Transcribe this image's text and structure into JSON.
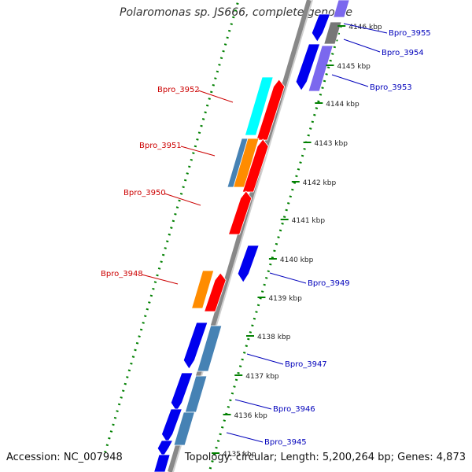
{
  "title": "Polaromonas sp. JS666, complete genome",
  "footer": {
    "accession": "Accession: NC_007948",
    "summary": "Topology: circular; Length: 5,200,264 bp; Genes: 4,873"
  },
  "colors": {
    "red": "#ff0000",
    "blue": "#0000ee",
    "orange": "#ff8c00",
    "cyan": "#00ffff",
    "steel": "#4682b4",
    "purple": "#7b68ee",
    "gray": "#777777",
    "tick_green": "#008000",
    "label_red": "#cc0000",
    "label_blue": "#0000bb"
  },
  "ticks": [
    {
      "label": "4146 kbp"
    },
    {
      "label": "4145 kbp"
    },
    {
      "label": "4144 kbp"
    },
    {
      "label": "4143 kbp"
    },
    {
      "label": "4142 kbp"
    },
    {
      "label": "4141 kbp"
    },
    {
      "label": "4140 kbp"
    },
    {
      "label": "4139 kbp"
    },
    {
      "label": "4138 kbp"
    },
    {
      "label": "4137 kbp"
    },
    {
      "label": "4136 kbp"
    },
    {
      "label": "4135 kbp"
    }
  ],
  "labels_left": [
    {
      "text": "Bpro_3952"
    },
    {
      "text": "Bpro_3951"
    },
    {
      "text": "Bpro_3950"
    },
    {
      "text": "Bpro_3948"
    }
  ],
  "labels_right": [
    {
      "text": "Bpro_3955"
    },
    {
      "text": "Bpro_3954"
    },
    {
      "text": "Bpro_3953"
    },
    {
      "text": "Bpro_3949"
    },
    {
      "text": "Bpro_3947"
    },
    {
      "text": "Bpro_3946"
    },
    {
      "text": "Bpro_3945"
    }
  ]
}
